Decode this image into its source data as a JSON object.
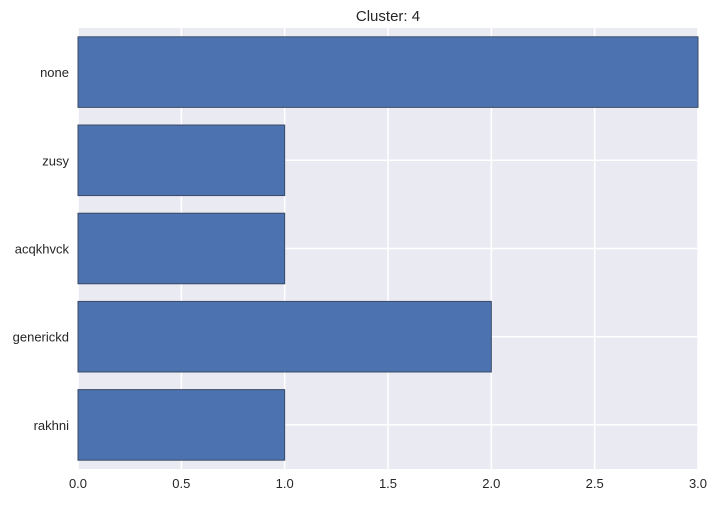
{
  "chart_data": {
    "type": "bar",
    "orientation": "horizontal",
    "title": "Cluster: 4",
    "categories": [
      "none",
      "zusy",
      "acqkhvck",
      "generickd",
      "rakhni"
    ],
    "values": [
      3,
      1,
      1,
      2,
      1
    ],
    "xlabel": "",
    "ylabel": "",
    "xlim": [
      0.0,
      3.0
    ],
    "xticks": [
      "0.0",
      "0.5",
      "1.0",
      "1.5",
      "2.0",
      "2.5",
      "3.0"
    ],
    "grid": true,
    "legend": "none"
  },
  "colors": {
    "background": "#EAEAF2",
    "bar_fill": "#4C72B0",
    "bar_edge": "#3A4A66",
    "grid": "#FFFFFF",
    "text": "#262626"
  }
}
